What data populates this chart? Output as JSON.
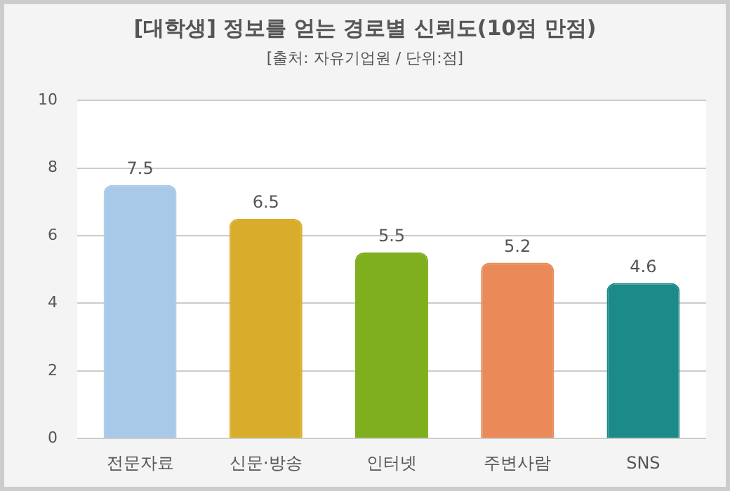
{
  "chart_data": {
    "type": "bar",
    "title": "[대학생] 정보를 얻는 경로별 신뢰도(10점 만점)",
    "subtitle": "[출처: 자유기업원 / 단위:점]",
    "categories": [
      "전문자료",
      "신문·방송",
      "인터넷",
      "주변사람",
      "SNS"
    ],
    "values": [
      7.5,
      6.5,
      5.5,
      5.2,
      4.6
    ],
    "colors": [
      "#a9c9e8",
      "#d9ad2c",
      "#7fae1e",
      "#e98a58",
      "#1b8a88"
    ],
    "ylim": [
      0,
      10
    ],
    "yticks": [
      0,
      2,
      4,
      6,
      8,
      10
    ],
    "grid": "y",
    "data_labels": true
  }
}
